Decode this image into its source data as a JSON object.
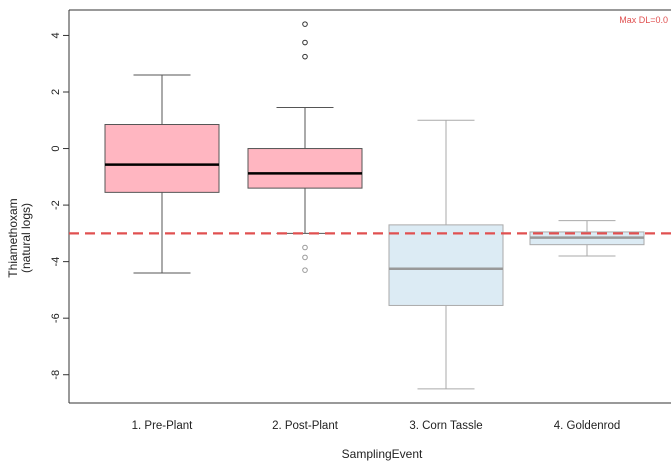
{
  "chart_data": {
    "type": "boxplot",
    "xlabel": "SamplingEvent",
    "ylabel": "Thiamethoxam",
    "ylabel_sub": "(natural logs)",
    "categories": [
      "1. Pre-Plant",
      "2. Post-Plant",
      "3. Corn Tassle",
      "4. Goldenrod"
    ],
    "ylim": [
      -9.0,
      4.9
    ],
    "y_ticks": [
      4,
      2,
      0,
      -2,
      -4,
      -6,
      -8
    ],
    "reference_line": {
      "y": -3.0,
      "label": "Max DL=0.0",
      "color": "#e05050"
    },
    "boxes": [
      {
        "category": "1. Pre-Plant",
        "whisker_low": -4.4,
        "q1": -1.55,
        "median": -0.57,
        "q3": 0.85,
        "whisker_high": 2.6,
        "outliers": [],
        "fill": "#ffb6c1",
        "stroke": "#555555",
        "median_color": "#000000"
      },
      {
        "category": "2. Post-Plant",
        "whisker_low": -3.0,
        "q1": -1.4,
        "median": -0.88,
        "q3": 0.0,
        "whisker_high": 1.45,
        "outliers": [
          4.4,
          3.75,
          3.25,
          -3.5,
          -3.85,
          -4.3
        ],
        "fill": "#ffb6c1",
        "stroke": "#555555",
        "median_color": "#000000"
      },
      {
        "category": "3. Corn Tassle",
        "whisker_low": -8.5,
        "q1": -5.55,
        "median": -4.25,
        "q3": -2.7,
        "whisker_high": 1.0,
        "outliers": [],
        "fill": "#dcebf4",
        "stroke": "#aaaaaa",
        "median_color": "#999999"
      },
      {
        "category": "4. Goldenrod",
        "whisker_low": -3.8,
        "q1": -3.4,
        "median": -3.15,
        "q3": -2.95,
        "whisker_high": -2.55,
        "outliers": [],
        "fill": "#dcebf4",
        "stroke": "#aaaaaa",
        "median_color": "#999999"
      }
    ]
  }
}
